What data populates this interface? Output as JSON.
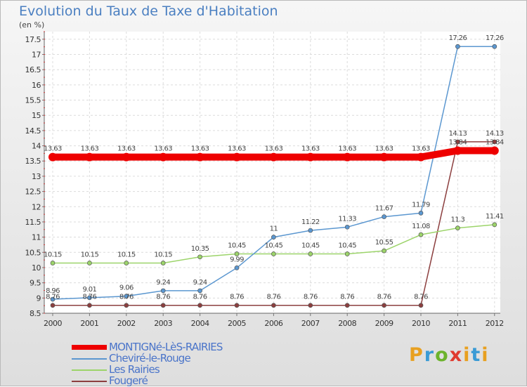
{
  "title": "Evolution du Taux de Taxe d'Habitation",
  "unit_label": "(en %)",
  "logo": {
    "letters": [
      "P",
      "r",
      "o",
      "x",
      "i",
      "t",
      "i"
    ],
    "colors": [
      "#e8a020",
      "#3a9bd5",
      "#6cb32c",
      "#e03a2f",
      "#e8a020",
      "#3a9bd5",
      "#e8a020"
    ]
  },
  "chart_data": {
    "type": "line",
    "title": "Evolution du Taux de Taxe d'Habitation",
    "ylabel": "(en %)",
    "xlabel": "",
    "x": [
      "2000",
      "2001",
      "2002",
      "2003",
      "2004",
      "2005",
      "2006",
      "2007",
      "2008",
      "2009",
      "2010",
      "2011",
      "2012"
    ],
    "ylim": [
      8.5,
      17.75
    ],
    "yticks": [
      "8.5",
      "9",
      "9.5",
      "10",
      "10.5",
      "11",
      "11.5",
      "12",
      "12.5",
      "13",
      "13.5",
      "14",
      "14.5",
      "15",
      "15.5",
      "16",
      "16.5",
      "17",
      "17.5"
    ],
    "grid": true,
    "legend_position": "bottom-left",
    "series": [
      {
        "name": "MONTIGNé-LèS-RAIRIES",
        "color": "#ee0000",
        "width": 10,
        "values": [
          13.63,
          13.63,
          13.63,
          13.63,
          13.63,
          13.63,
          13.63,
          13.63,
          13.63,
          13.63,
          13.63,
          13.84,
          13.84
        ],
        "labels": [
          "13.63",
          "13.63",
          "13.63",
          "13.63",
          "13.63",
          "13.63",
          "13.63",
          "13.63",
          "13.63",
          "13.63",
          "13.63",
          "13.84",
          "13.84"
        ]
      },
      {
        "name": "Cheviré-le-Rouge",
        "color": "#5b97d0",
        "width": 1.5,
        "values": [
          8.96,
          9.01,
          9.06,
          9.24,
          9.24,
          9.99,
          11,
          11.22,
          11.33,
          11.67,
          11.79,
          17.26,
          17.26
        ],
        "labels": [
          "8.96",
          "9.01",
          "9.06",
          "9.24",
          "9.24",
          "9.99",
          "11",
          "11.22",
          "11.33",
          "11.67",
          "11.79",
          "17.26",
          "17.26"
        ]
      },
      {
        "name": "Les Rairies",
        "color": "#9cd46a",
        "width": 1.5,
        "values": [
          10.15,
          10.15,
          10.15,
          10.15,
          10.35,
          10.45,
          10.45,
          10.45,
          10.45,
          10.55,
          11.08,
          11.3,
          11.41
        ],
        "labels": [
          "10.15",
          "10.15",
          "10.15",
          "10.15",
          "10.35",
          "10.45",
          "10.45",
          "10.45",
          "10.45",
          "10.55",
          "11.08",
          "11.3",
          "11.41"
        ]
      },
      {
        "name": "Fougeré",
        "color": "#8c3f3f",
        "width": 1.5,
        "values": [
          8.76,
          8.76,
          8.76,
          8.76,
          8.76,
          8.76,
          8.76,
          8.76,
          8.76,
          8.76,
          8.76,
          14.13,
          14.13
        ],
        "labels": [
          "8.76",
          "8.76",
          "8.76",
          "8.76",
          "8.76",
          "8.76",
          "8.76",
          "8.76",
          "8.76",
          "8.76",
          "8.76",
          "14.13",
          "14.13"
        ]
      }
    ]
  }
}
